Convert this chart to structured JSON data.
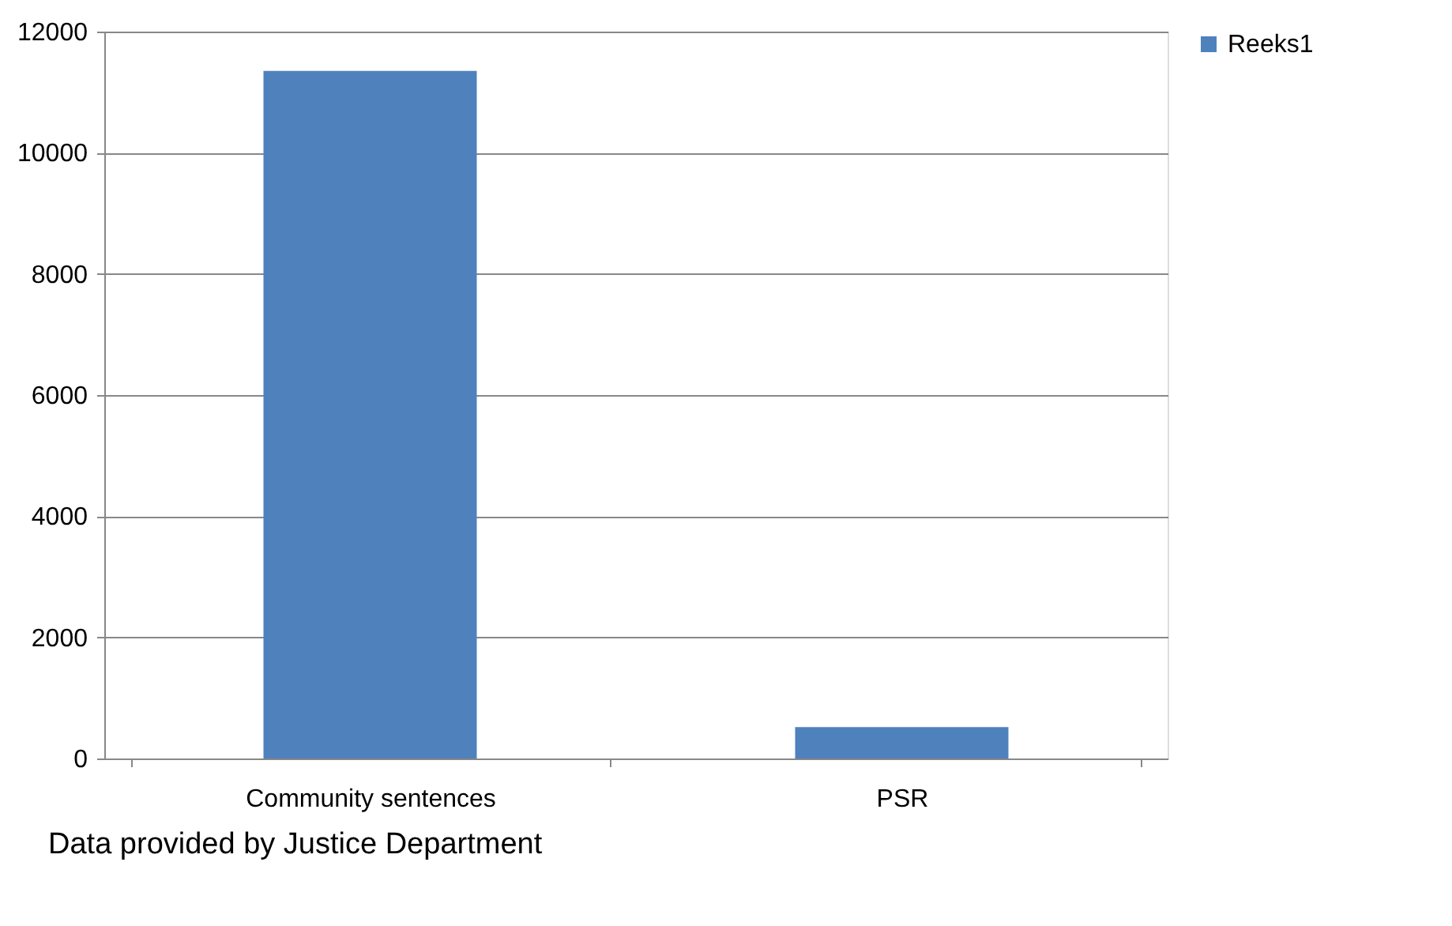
{
  "chart_data": {
    "type": "bar",
    "categories": [
      "Community sentences",
      "PSR"
    ],
    "series": [
      {
        "name": "Reeks1",
        "color": "#4f81bd",
        "values": [
          11350,
          520
        ]
      }
    ],
    "ylim": [
      0,
      12000
    ],
    "yticks": [
      0,
      2000,
      4000,
      6000,
      8000,
      10000,
      12000
    ],
    "grid": "y",
    "legend": "right",
    "annotations": [
      "Data provided by Justice Department"
    ]
  }
}
